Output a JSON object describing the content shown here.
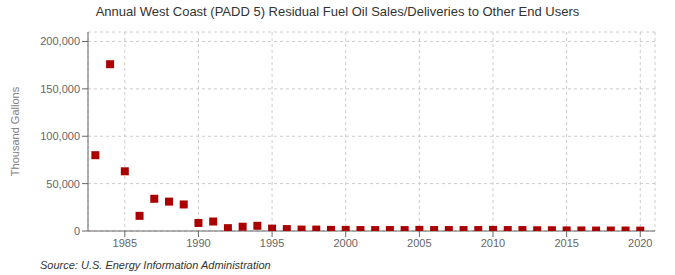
{
  "chart_data": {
    "type": "scatter",
    "title": "Annual West Coast (PADD 5) Residual Fuel Oil Sales/Deliveries to Other End Users",
    "ylabel": "Thousand Gallons",
    "annotations": [
      "Source: U.S. Energy Information Administration"
    ],
    "x": [
      1983,
      1984,
      1985,
      1986,
      1987,
      1988,
      1989,
      1990,
      1991,
      1992,
      1993,
      1994,
      1995,
      1996,
      1997,
      1998,
      1999,
      2000,
      2001,
      2002,
      2003,
      2004,
      2005,
      2006,
      2007,
      2008,
      2009,
      2010,
      2011,
      2012,
      2013,
      2014,
      2015,
      2016,
      2017,
      2018,
      2019,
      2020
    ],
    "values": [
      80000,
      176000,
      63000,
      16000,
      34000,
      31000,
      28000,
      8500,
      10000,
      3000,
      4500,
      5500,
      2500,
      2000,
      1500,
      1500,
      1200,
      1200,
      1000,
      1000,
      1000,
      1000,
      1200,
      1000,
      1000,
      1000,
      1000,
      1200,
      1000,
      1000,
      800,
      800,
      600,
      600,
      500,
      500,
      500,
      400
    ],
    "color": "#aa0000",
    "marker": "square",
    "grid": true,
    "xlim": [
      1982.5,
      2021
    ],
    "xticks": [
      1985,
      1990,
      1995,
      2000,
      2005,
      2010,
      2015,
      2020
    ],
    "ylim": [
      0,
      210000
    ],
    "yticks": [
      0,
      {
        "value": 50000,
        "label": "50,000"
      },
      {
        "value": 100000,
        "label": "100,000"
      },
      {
        "value": 150000,
        "label": "150,000"
      },
      {
        "value": 200000,
        "label": "200,000"
      }
    ]
  }
}
